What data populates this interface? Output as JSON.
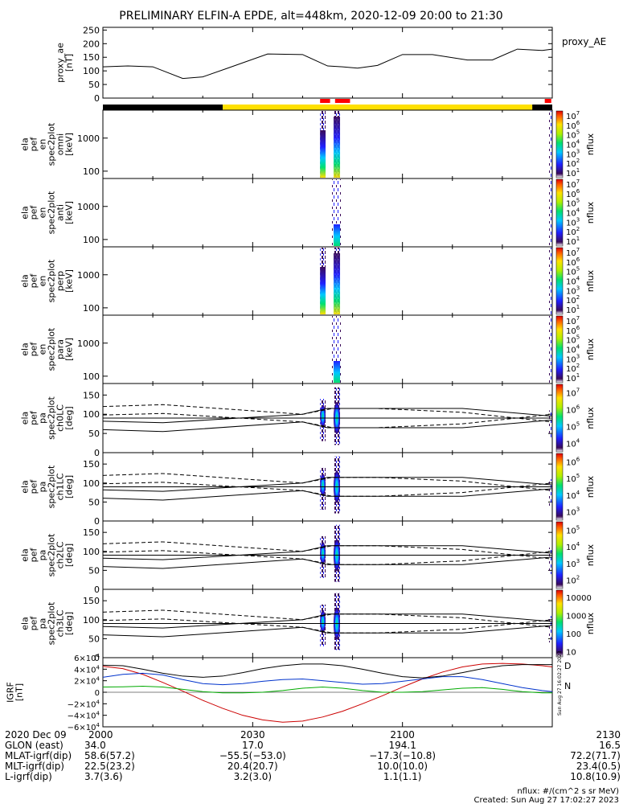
{
  "title": "PRELIMINARY ELFIN-A EPDE, alt=448km, 2020-12-09 20:00 to 21:30",
  "colors": {
    "sunlight": "#ffe000",
    "eclipse": "#000000",
    "science_bar": "#ff0000",
    "igrf_x": "#cc0000",
    "igrf_y": "#0033cc",
    "igrf_z": "#00aa00"
  },
  "chart_data": [
    {
      "id": "proxy_ae",
      "type": "line",
      "ylabel_lines": [
        "proxy_ae",
        "[nT]"
      ],
      "legend": "proxy_AE",
      "ylim": [
        0,
        260
      ],
      "yticks": [
        "0",
        "50",
        "100",
        "150",
        "200",
        "250"
      ],
      "x_minutes": [
        0,
        5,
        10,
        16,
        20,
        25,
        33,
        40,
        45,
        48,
        51,
        55,
        60,
        66,
        73,
        78,
        83,
        88,
        90
      ],
      "values": [
        115,
        118,
        115,
        72,
        78,
        110,
        162,
        160,
        118,
        115,
        110,
        120,
        160,
        160,
        140,
        140,
        180,
        175,
        180
      ]
    },
    {
      "id": "ephemeris_bar",
      "type": "bar",
      "segments": [
        {
          "from": 0,
          "to": 24,
          "state": "eclipse"
        },
        {
          "from": 24,
          "to": 86,
          "state": "sunlight"
        },
        {
          "from": 86,
          "to": 90,
          "state": "eclipse"
        }
      ],
      "science_intervals": [
        [
          43.5,
          45.5
        ],
        [
          46.5,
          49.5
        ],
        [
          88.5,
          89.8
        ]
      ]
    },
    {
      "id": "spec_omni",
      "type": "heatmap",
      "ylabel_lines": [
        "ela",
        "pef",
        "en",
        "spec2plot",
        "omni",
        "[keV]"
      ],
      "yticks": [
        "100",
        "1000"
      ],
      "colorbar_exponents": [
        "1",
        "2",
        "3",
        "4",
        "5",
        "6",
        "7"
      ],
      "colorbar_label": "nflux"
    },
    {
      "id": "spec_anti",
      "type": "heatmap",
      "ylabel_lines": [
        "ela",
        "pef",
        "en",
        "spec2plot",
        "anti",
        "[keV]"
      ],
      "yticks": [
        "100",
        "1000"
      ],
      "colorbar_exponents": [
        "1",
        "2",
        "3",
        "4",
        "5",
        "6",
        "7"
      ],
      "colorbar_label": "nflux"
    },
    {
      "id": "spec_perp",
      "type": "heatmap",
      "ylabel_lines": [
        "ela",
        "pef",
        "en",
        "spec2plot",
        "perp",
        "[keV]"
      ],
      "yticks": [
        "100",
        "1000"
      ],
      "colorbar_exponents": [
        "1",
        "2",
        "3",
        "4",
        "5",
        "6",
        "7"
      ],
      "colorbar_label": "nflux"
    },
    {
      "id": "spec_para",
      "type": "heatmap",
      "ylabel_lines": [
        "ela",
        "pef",
        "en",
        "spec2plot",
        "para",
        "[keV]"
      ],
      "yticks": [
        "100",
        "1000"
      ],
      "colorbar_exponents": [
        "1",
        "2",
        "3",
        "4",
        "5",
        "6",
        "7"
      ],
      "colorbar_label": "nflux"
    },
    {
      "id": "pa_ch0",
      "type": "heatmap",
      "ylabel_lines": [
        "ela",
        "pef",
        "pa",
        "spec2plot",
        "ch0LC",
        "[deg]"
      ],
      "ylim": [
        0,
        180
      ],
      "yticks": [
        "0",
        "50",
        "100",
        "150"
      ],
      "colorbar_exponents": [
        "4",
        "5",
        "6",
        "7"
      ],
      "colorbar_label": "nflux"
    },
    {
      "id": "pa_ch1",
      "type": "heatmap",
      "ylabel_lines": [
        "ela",
        "pef",
        "pa",
        "spec2plot",
        "ch1LC",
        "[deg]"
      ],
      "ylim": [
        0,
        180
      ],
      "yticks": [
        "0",
        "50",
        "100",
        "150"
      ],
      "colorbar_exponents": [
        "3",
        "4",
        "5",
        "6"
      ],
      "colorbar_label": "nflux"
    },
    {
      "id": "pa_ch2",
      "type": "heatmap",
      "ylabel_lines": [
        "ela",
        "pef",
        "pa",
        "spec2plot",
        "ch2LC",
        "[deg]"
      ],
      "ylim": [
        0,
        180
      ],
      "yticks": [
        "0",
        "50",
        "100",
        "150"
      ],
      "colorbar_exponents": [
        "2",
        "3",
        "4",
        "5"
      ],
      "colorbar_label": "nflux"
    },
    {
      "id": "pa_ch3",
      "type": "heatmap",
      "ylabel_lines": [
        "ela",
        "pef",
        "pa",
        "spec2plot",
        "ch3LC",
        "[deg]"
      ],
      "ylim": [
        0,
        180
      ],
      "yticks": [
        "0",
        "50",
        "100",
        "150"
      ],
      "colorbar_ticks": [
        "10",
        "100",
        "1000",
        "10000"
      ],
      "colorbar_label": "nflux"
    },
    {
      "id": "igrf",
      "type": "line",
      "ylabel_lines": [
        "IGRF",
        "[nT]"
      ],
      "ylim": [
        -60000,
        60000
      ],
      "yticks": [
        {
          "v": -60000,
          "m": "−6×10",
          "e": "4"
        },
        {
          "v": -40000,
          "m": "−4×10",
          "e": "4"
        },
        {
          "v": -20000,
          "m": "−2×10",
          "e": "4"
        },
        {
          "v": 0,
          "m": "0",
          "e": ""
        },
        {
          "v": 20000,
          "m": "2×10",
          "e": "4"
        },
        {
          "v": 40000,
          "m": "4×10",
          "e": "4"
        },
        {
          "v": 60000,
          "m": "6×10",
          "e": "4"
        }
      ],
      "legend": [
        "D",
        "N"
      ],
      "side_note": "Sun Aug 27 16:02:27 2023",
      "x_minutes": [
        0,
        4,
        8,
        12,
        16,
        20,
        24,
        28,
        32,
        36,
        40,
        44,
        48,
        52,
        56,
        60,
        64,
        68,
        72,
        76,
        80,
        84,
        88,
        90
      ],
      "series": [
        {
          "values": [
            45000,
            41000,
            31000,
            17000,
            2000,
            -14000,
            -28000,
            -40000,
            -48000,
            -52000,
            -50000,
            -43000,
            -33000,
            -20000,
            -6000,
            9000,
            23000,
            35000,
            44000,
            49000,
            50000,
            49000,
            46000,
            44000
          ]
        },
        {
          "values": [
            26000,
            31000,
            33000,
            30000,
            22000,
            15000,
            13000,
            15000,
            19000,
            22000,
            23000,
            20000,
            17000,
            14000,
            15000,
            19000,
            23000,
            27000,
            27000,
            22000,
            15000,
            8000,
            3000,
            1000
          ]
        },
        {
          "values": [
            9000,
            9500,
            10500,
            9000,
            5000,
            1000,
            -1000,
            -1000,
            0,
            3000,
            7000,
            9000,
            7000,
            3000,
            0,
            0,
            1000,
            4000,
            7000,
            8000,
            5000,
            1000,
            -1000,
            -1000
          ]
        },
        {
          "values": [
            47000,
            46000,
            40000,
            33000,
            28000,
            26000,
            28000,
            34000,
            41000,
            46000,
            49000,
            49000,
            46000,
            40000,
            33000,
            27000,
            25000,
            28000,
            34000,
            41000,
            46000,
            48000,
            48000,
            48000
          ]
        }
      ]
    }
  ],
  "pa_lines": {
    "solid_upper": [
      [
        0,
        82
      ],
      [
        12,
        78
      ],
      [
        40,
        100
      ],
      [
        45,
        115
      ],
      [
        55,
        115
      ],
      [
        72,
        115
      ],
      [
        90,
        95
      ]
    ],
    "solid_lower": [
      [
        0,
        60
      ],
      [
        12,
        55
      ],
      [
        40,
        80
      ],
      [
        45,
        65
      ],
      [
        55,
        65
      ],
      [
        72,
        65
      ],
      [
        90,
        85
      ]
    ],
    "dashed_upper": [
      [
        0,
        98
      ],
      [
        12,
        102
      ],
      [
        40,
        80
      ],
      [
        46,
        65
      ],
      [
        55,
        65
      ],
      [
        72,
        75
      ],
      [
        90,
        100
      ]
    ],
    "dashed_lower": [
      [
        0,
        120
      ],
      [
        12,
        125
      ],
      [
        40,
        100
      ],
      [
        46,
        115
      ],
      [
        55,
        115
      ],
      [
        72,
        105
      ],
      [
        90,
        80
      ]
    ],
    "center": 90
  },
  "ephemeris": {
    "labels": [
      "2020 Dec 09",
      "GLON (east)",
      "MLAT-igrf(dip)",
      "MLT-igrf(dip)",
      "L-igrf(dip)"
    ],
    "columns": [
      {
        "time": "2000",
        "glon": "34.0",
        "mlat": "58.6(57.2)",
        "mlt": "22.5(23.2)",
        "l": "3.7(3.6)"
      },
      {
        "time": "2030",
        "glon": "17.0",
        "mlat": "−55.5(−53.0)",
        "mlt": "20.4(20.7)",
        "l": "3.2(3.0)"
      },
      {
        "time": "2100",
        "glon": "194.1",
        "mlat": "−17.3(−10.8)",
        "mlt": "10.0(10.0)",
        "l": "1.1(1.1)"
      },
      {
        "time": "2130",
        "glon": "16.5",
        "mlat": "72.2(71.7)",
        "mlt": "23.4(0.5)",
        "l": "10.8(10.9)"
      }
    ]
  },
  "footer": {
    "units": "nflux: #/(cm^2 s sr MeV)",
    "created": "Created: Sun Aug 27 17:02:27 2023"
  }
}
